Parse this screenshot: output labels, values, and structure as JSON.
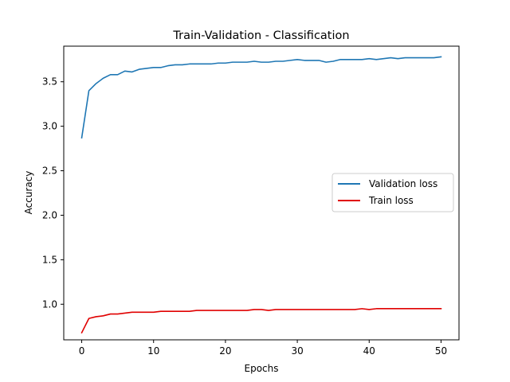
{
  "chart_data": {
    "type": "line",
    "title": "Train-Validation - Classification",
    "xlabel": "Epochs",
    "ylabel": "Accuracy",
    "xlim": [
      -2.5,
      52.5
    ],
    "ylim": [
      0.6,
      3.9
    ],
    "xticks": [
      0,
      10,
      20,
      30,
      40,
      50
    ],
    "yticks": [
      1.0,
      1.5,
      2.0,
      2.5,
      3.0,
      3.5
    ],
    "xtick_labels": [
      "0",
      "10",
      "20",
      "30",
      "40",
      "50"
    ],
    "ytick_labels": [
      "1.0",
      "1.5",
      "2.0",
      "2.5",
      "3.0",
      "3.5"
    ],
    "grid": false,
    "legend_position": "center-right",
    "x": [
      0,
      1,
      2,
      3,
      4,
      5,
      6,
      7,
      8,
      9,
      10,
      11,
      12,
      13,
      14,
      15,
      16,
      17,
      18,
      19,
      20,
      21,
      22,
      23,
      24,
      25,
      26,
      27,
      28,
      29,
      30,
      31,
      32,
      33,
      34,
      35,
      36,
      37,
      38,
      39,
      40,
      41,
      42,
      43,
      44,
      45,
      46,
      47,
      48,
      49,
      50
    ],
    "series": [
      {
        "name": "Validation loss",
        "color": "#1f77b4",
        "values": [
          2.87,
          3.4,
          3.48,
          3.54,
          3.58,
          3.58,
          3.62,
          3.61,
          3.64,
          3.65,
          3.66,
          3.66,
          3.68,
          3.69,
          3.69,
          3.7,
          3.7,
          3.7,
          3.7,
          3.71,
          3.71,
          3.72,
          3.72,
          3.72,
          3.73,
          3.72,
          3.72,
          3.73,
          3.73,
          3.74,
          3.75,
          3.74,
          3.74,
          3.74,
          3.72,
          3.73,
          3.75,
          3.75,
          3.75,
          3.75,
          3.76,
          3.75,
          3.76,
          3.77,
          3.76,
          3.77,
          3.77,
          3.77,
          3.77,
          3.77,
          3.78
        ]
      },
      {
        "name": "Train loss",
        "color": "#e00000",
        "values": [
          0.68,
          0.84,
          0.86,
          0.87,
          0.89,
          0.89,
          0.9,
          0.91,
          0.91,
          0.91,
          0.91,
          0.92,
          0.92,
          0.92,
          0.92,
          0.92,
          0.93,
          0.93,
          0.93,
          0.93,
          0.93,
          0.93,
          0.93,
          0.93,
          0.94,
          0.94,
          0.93,
          0.94,
          0.94,
          0.94,
          0.94,
          0.94,
          0.94,
          0.94,
          0.94,
          0.94,
          0.94,
          0.94,
          0.94,
          0.95,
          0.94,
          0.95,
          0.95,
          0.95,
          0.95,
          0.95,
          0.95,
          0.95,
          0.95,
          0.95,
          0.95
        ]
      }
    ]
  }
}
